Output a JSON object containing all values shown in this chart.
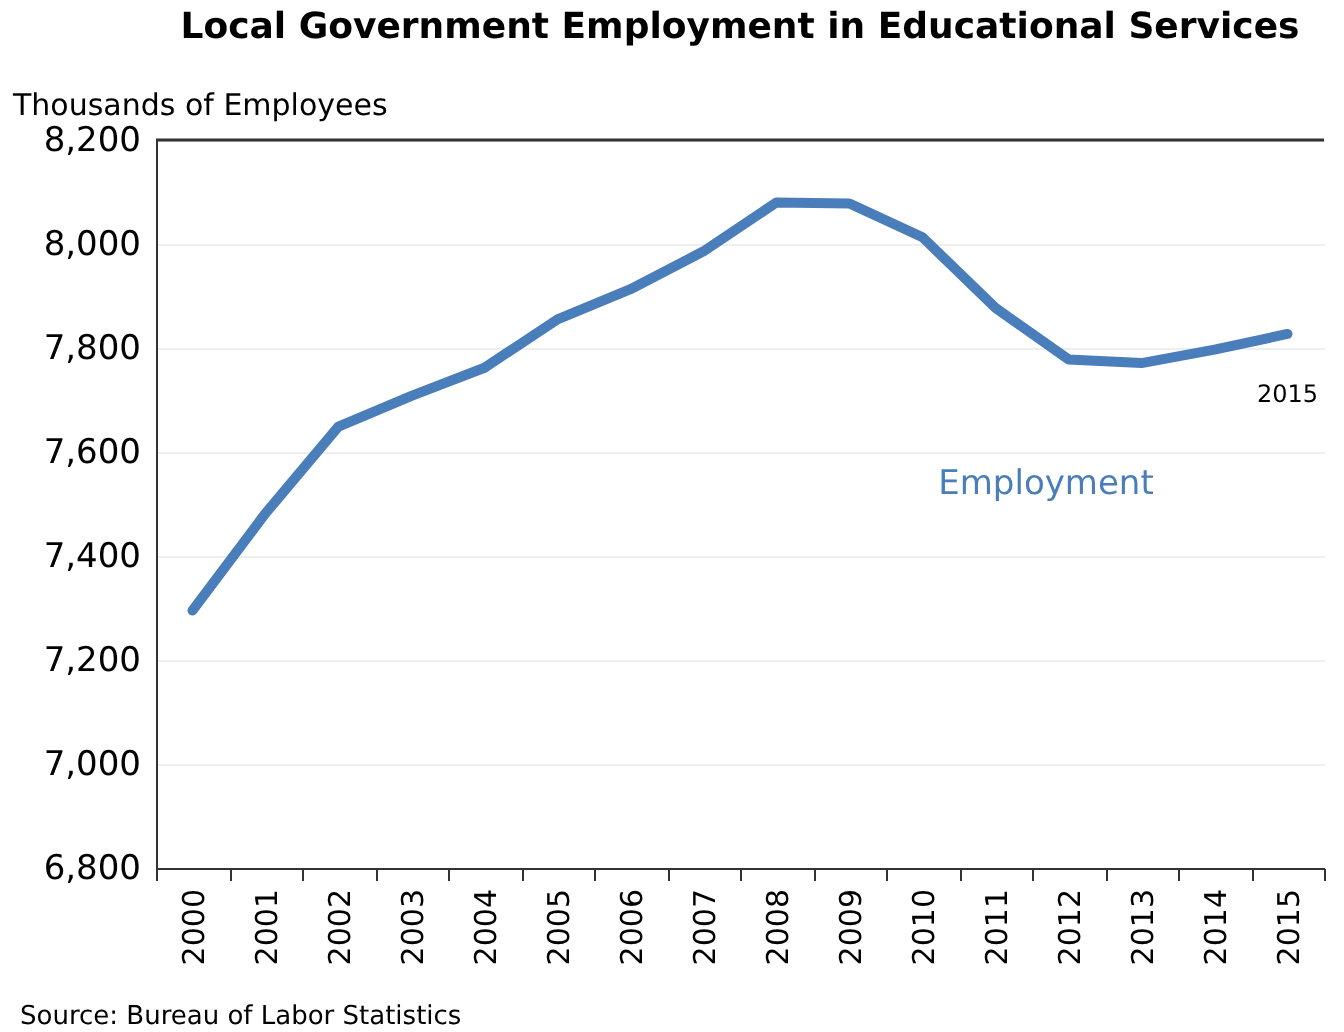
{
  "chart_data": {
    "type": "line",
    "title": "Local Government Employment in Educational Services",
    "ylabel": "Thousands of Employees",
    "categories": [
      "2000",
      "2001",
      "2002",
      "2003",
      "2004",
      "2005",
      "2006",
      "2007",
      "2008",
      "2009",
      "2010",
      "2011",
      "2012",
      "2013",
      "2014",
      "2015"
    ],
    "series": [
      {
        "name": "Employment",
        "color": "#4a7ebb",
        "values": [
          7295,
          7482,
          7649,
          7708,
          7762,
          7855,
          7913,
          7986,
          8080,
          8078,
          8013,
          7877,
          7778,
          7771,
          7797,
          7827
        ]
      }
    ],
    "ylim": [
      6800,
      8200
    ],
    "yticks": [
      {
        "value": 6800,
        "label": "6,800"
      },
      {
        "value": 7000,
        "label": "7,000"
      },
      {
        "value": 7200,
        "label": "7,200"
      },
      {
        "value": 7400,
        "label": "7,400"
      },
      {
        "value": 7600,
        "label": "7,600"
      },
      {
        "value": 7800,
        "label": "7,800"
      },
      {
        "value": 8000,
        "label": "8,000"
      },
      {
        "value": 8200,
        "label": "8,200"
      }
    ],
    "grid": "y",
    "legend": false,
    "marker": "none",
    "line_style": "solid",
    "annotations": [
      {
        "text": "2015",
        "x": "2015",
        "y": 7827
      },
      "Source: Bureau of Labor Statistics"
    ]
  }
}
